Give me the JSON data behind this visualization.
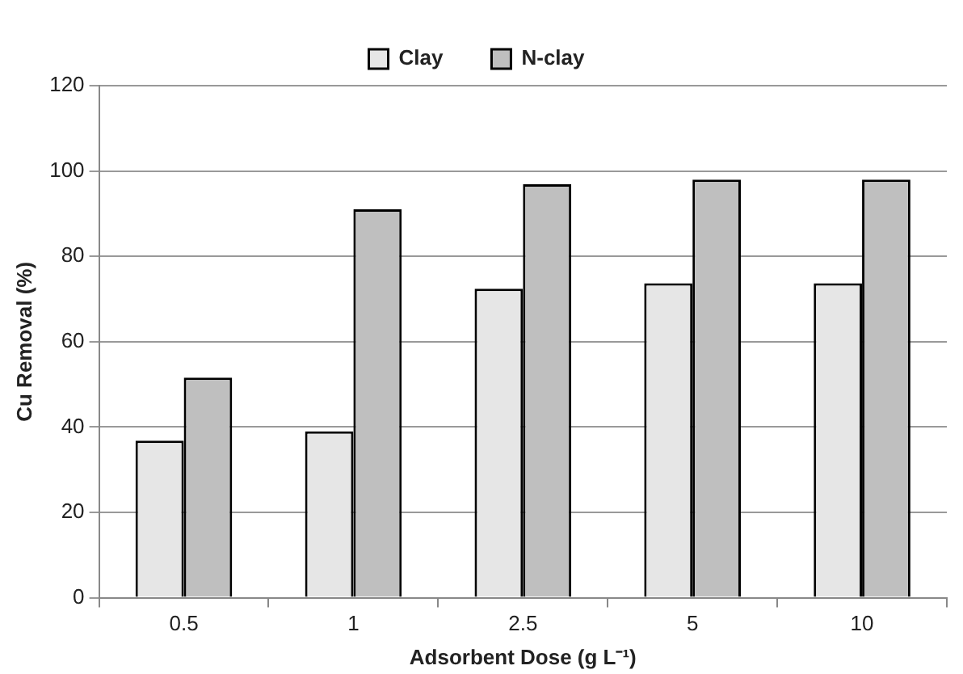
{
  "chart_data": {
    "type": "bar",
    "xlabel": "Adsorbent Dose (g L⁻¹)",
    "ylabel": "Cu Removal (%)",
    "categories": [
      "0.5",
      "1",
      "2.5",
      "5",
      "10"
    ],
    "series": [
      {
        "name": "Clay",
        "color": "#e6e6e6",
        "values": [
          36.8,
          39,
          72.4,
          73.7,
          73.7
        ]
      },
      {
        "name": "N-clay",
        "color": "#bfbfbf",
        "values": [
          51.6,
          91,
          96.9,
          98,
          98
        ]
      }
    ],
    "ylim": [
      0,
      120
    ],
    "yticks": [
      0,
      20,
      40,
      60,
      80,
      100,
      120
    ],
    "grid": "y",
    "legend": "top"
  }
}
